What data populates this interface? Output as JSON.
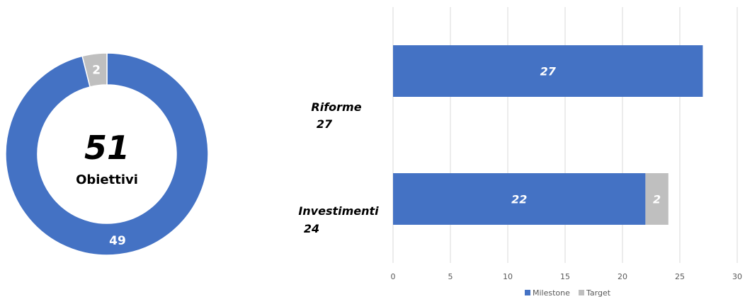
{
  "colors": {
    "milestone": "#4472C4",
    "target": "#BFBFBF",
    "grid": "#D9D9D9"
  },
  "chart_data": [
    {
      "type": "pie",
      "variant": "donut",
      "center_value": "51",
      "center_label": "Obiettivi",
      "slices": [
        {
          "name": "Milestone",
          "value": 49,
          "label": "49"
        },
        {
          "name": "Target",
          "value": 2,
          "label": "2"
        }
      ]
    },
    {
      "type": "bar",
      "orientation": "horizontal",
      "stacked": true,
      "categories": [
        {
          "name": "Riforme",
          "total": "27"
        },
        {
          "name": "Investimenti",
          "total": "24"
        }
      ],
      "series": [
        {
          "name": "Milestone",
          "values": [
            27,
            22
          ],
          "labels": [
            "27",
            "22"
          ]
        },
        {
          "name": "Target",
          "values": [
            0,
            2
          ],
          "labels": [
            "",
            "2"
          ]
        }
      ],
      "xlim": [
        0,
        30
      ],
      "xticks": [
        "0",
        "5",
        "10",
        "15",
        "20",
        "25",
        "30"
      ],
      "grid": "vertical",
      "legend": "bottom"
    }
  ]
}
